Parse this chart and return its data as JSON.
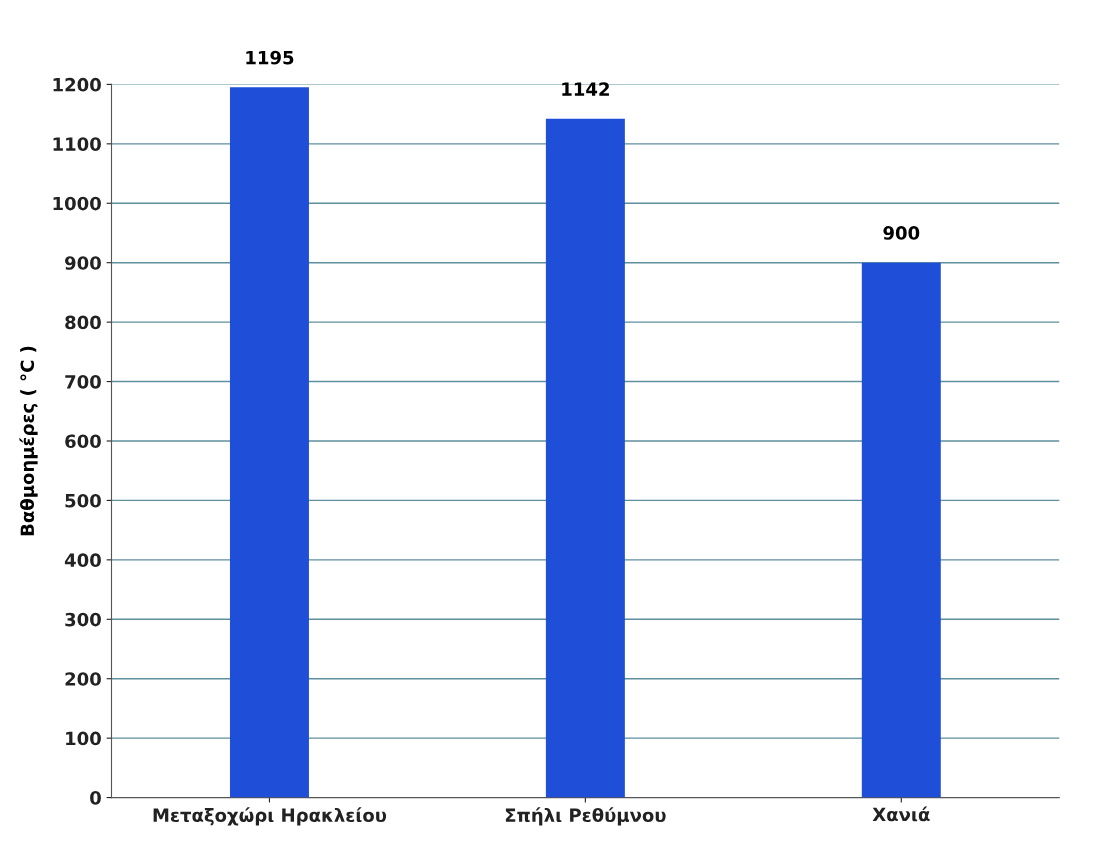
{
  "chart_data": {
    "type": "bar",
    "ylabel": "Βαθμοημέρες ( °C )",
    "categories": [
      "Μεταξοχώρι Ηρακλείου",
      "Σπήλι Ρεθύμνου",
      "Χανιά"
    ],
    "values": [
      1195,
      1142,
      900
    ],
    "color": "#1f4ed8",
    "ylim": [
      0,
      1200
    ],
    "yticks": [
      0,
      100,
      200,
      300,
      400,
      500,
      600,
      700,
      800,
      900,
      1000,
      1100,
      1200
    ],
    "grid": "y",
    "data_labels": true
  }
}
